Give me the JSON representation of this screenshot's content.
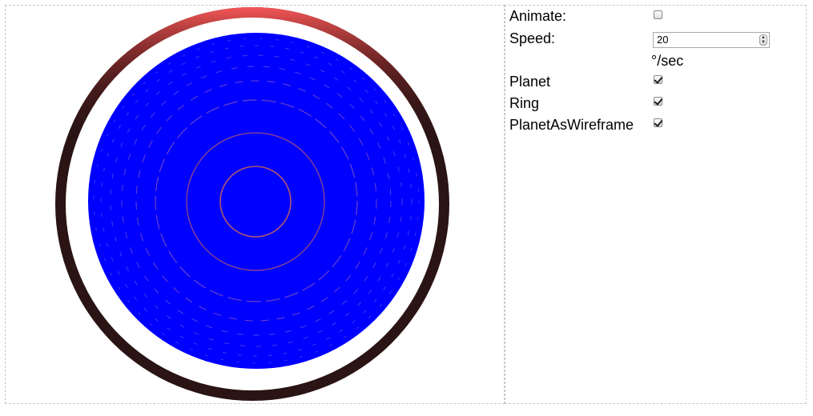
{
  "controls": {
    "animate_label": "Animate:",
    "animate_checked": false,
    "speed_label": "Speed:",
    "speed_value": "20",
    "speed_unit": "°/sec",
    "planet_label": "Planet",
    "planet_checked": true,
    "ring_label": "Ring",
    "ring_checked": true,
    "wireframe_label": "PlanetAsWireframe",
    "wireframe_checked": true
  },
  "scene": {
    "planet_color": "#0000ff",
    "planet_wire_color": "#c06060",
    "ring_color_dark": "#2a1414",
    "ring_color_highlight": "#ff5a5a",
    "background_color": "#ffffff"
  }
}
